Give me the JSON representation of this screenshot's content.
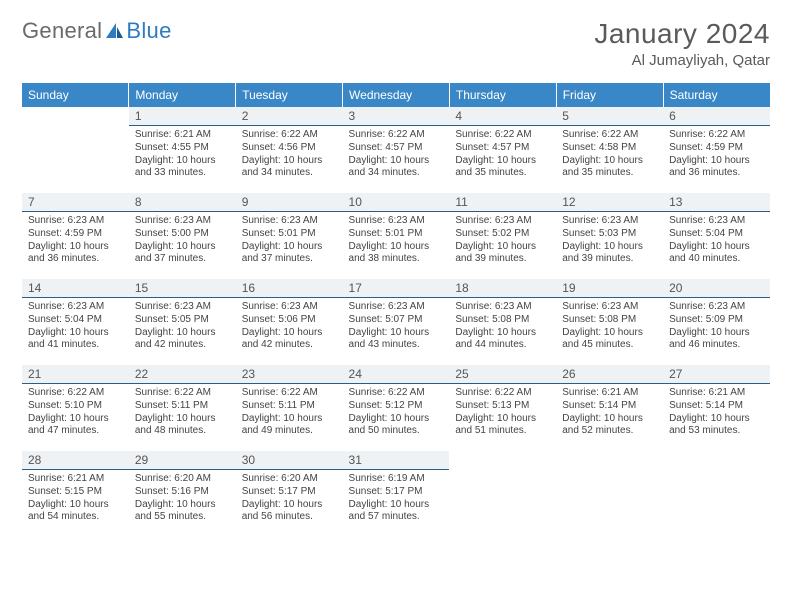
{
  "logo": {
    "text_general": "General",
    "text_blue": "Blue"
  },
  "title": {
    "month": "January 2024",
    "location": "Al Jumayliyah, Qatar"
  },
  "colors": {
    "header_bg": "#3a87c7",
    "header_text": "#ffffff",
    "daynum_bg": "#eef2f4",
    "daynum_border": "#285f8a",
    "body_text": "#444444",
    "logo_blue": "#2e7bbf"
  },
  "weekdays": [
    "Sunday",
    "Monday",
    "Tuesday",
    "Wednesday",
    "Thursday",
    "Friday",
    "Saturday"
  ],
  "first_weekday_index": 1,
  "days": [
    {
      "n": 1,
      "sunrise": "6:21 AM",
      "sunset": "4:55 PM",
      "daylight": "10 hours and 33 minutes."
    },
    {
      "n": 2,
      "sunrise": "6:22 AM",
      "sunset": "4:56 PM",
      "daylight": "10 hours and 34 minutes."
    },
    {
      "n": 3,
      "sunrise": "6:22 AM",
      "sunset": "4:57 PM",
      "daylight": "10 hours and 34 minutes."
    },
    {
      "n": 4,
      "sunrise": "6:22 AM",
      "sunset": "4:57 PM",
      "daylight": "10 hours and 35 minutes."
    },
    {
      "n": 5,
      "sunrise": "6:22 AM",
      "sunset": "4:58 PM",
      "daylight": "10 hours and 35 minutes."
    },
    {
      "n": 6,
      "sunrise": "6:22 AM",
      "sunset": "4:59 PM",
      "daylight": "10 hours and 36 minutes."
    },
    {
      "n": 7,
      "sunrise": "6:23 AM",
      "sunset": "4:59 PM",
      "daylight": "10 hours and 36 minutes."
    },
    {
      "n": 8,
      "sunrise": "6:23 AM",
      "sunset": "5:00 PM",
      "daylight": "10 hours and 37 minutes."
    },
    {
      "n": 9,
      "sunrise": "6:23 AM",
      "sunset": "5:01 PM",
      "daylight": "10 hours and 37 minutes."
    },
    {
      "n": 10,
      "sunrise": "6:23 AM",
      "sunset": "5:01 PM",
      "daylight": "10 hours and 38 minutes."
    },
    {
      "n": 11,
      "sunrise": "6:23 AM",
      "sunset": "5:02 PM",
      "daylight": "10 hours and 39 minutes."
    },
    {
      "n": 12,
      "sunrise": "6:23 AM",
      "sunset": "5:03 PM",
      "daylight": "10 hours and 39 minutes."
    },
    {
      "n": 13,
      "sunrise": "6:23 AM",
      "sunset": "5:04 PM",
      "daylight": "10 hours and 40 minutes."
    },
    {
      "n": 14,
      "sunrise": "6:23 AM",
      "sunset": "5:04 PM",
      "daylight": "10 hours and 41 minutes."
    },
    {
      "n": 15,
      "sunrise": "6:23 AM",
      "sunset": "5:05 PM",
      "daylight": "10 hours and 42 minutes."
    },
    {
      "n": 16,
      "sunrise": "6:23 AM",
      "sunset": "5:06 PM",
      "daylight": "10 hours and 42 minutes."
    },
    {
      "n": 17,
      "sunrise": "6:23 AM",
      "sunset": "5:07 PM",
      "daylight": "10 hours and 43 minutes."
    },
    {
      "n": 18,
      "sunrise": "6:23 AM",
      "sunset": "5:08 PM",
      "daylight": "10 hours and 44 minutes."
    },
    {
      "n": 19,
      "sunrise": "6:23 AM",
      "sunset": "5:08 PM",
      "daylight": "10 hours and 45 minutes."
    },
    {
      "n": 20,
      "sunrise": "6:23 AM",
      "sunset": "5:09 PM",
      "daylight": "10 hours and 46 minutes."
    },
    {
      "n": 21,
      "sunrise": "6:22 AM",
      "sunset": "5:10 PM",
      "daylight": "10 hours and 47 minutes."
    },
    {
      "n": 22,
      "sunrise": "6:22 AM",
      "sunset": "5:11 PM",
      "daylight": "10 hours and 48 minutes."
    },
    {
      "n": 23,
      "sunrise": "6:22 AM",
      "sunset": "5:11 PM",
      "daylight": "10 hours and 49 minutes."
    },
    {
      "n": 24,
      "sunrise": "6:22 AM",
      "sunset": "5:12 PM",
      "daylight": "10 hours and 50 minutes."
    },
    {
      "n": 25,
      "sunrise": "6:22 AM",
      "sunset": "5:13 PM",
      "daylight": "10 hours and 51 minutes."
    },
    {
      "n": 26,
      "sunrise": "6:21 AM",
      "sunset": "5:14 PM",
      "daylight": "10 hours and 52 minutes."
    },
    {
      "n": 27,
      "sunrise": "6:21 AM",
      "sunset": "5:14 PM",
      "daylight": "10 hours and 53 minutes."
    },
    {
      "n": 28,
      "sunrise": "6:21 AM",
      "sunset": "5:15 PM",
      "daylight": "10 hours and 54 minutes."
    },
    {
      "n": 29,
      "sunrise": "6:20 AM",
      "sunset": "5:16 PM",
      "daylight": "10 hours and 55 minutes."
    },
    {
      "n": 30,
      "sunrise": "6:20 AM",
      "sunset": "5:17 PM",
      "daylight": "10 hours and 56 minutes."
    },
    {
      "n": 31,
      "sunrise": "6:19 AM",
      "sunset": "5:17 PM",
      "daylight": "10 hours and 57 minutes."
    }
  ],
  "labels": {
    "sunrise": "Sunrise:",
    "sunset": "Sunset:",
    "daylight": "Daylight:"
  }
}
